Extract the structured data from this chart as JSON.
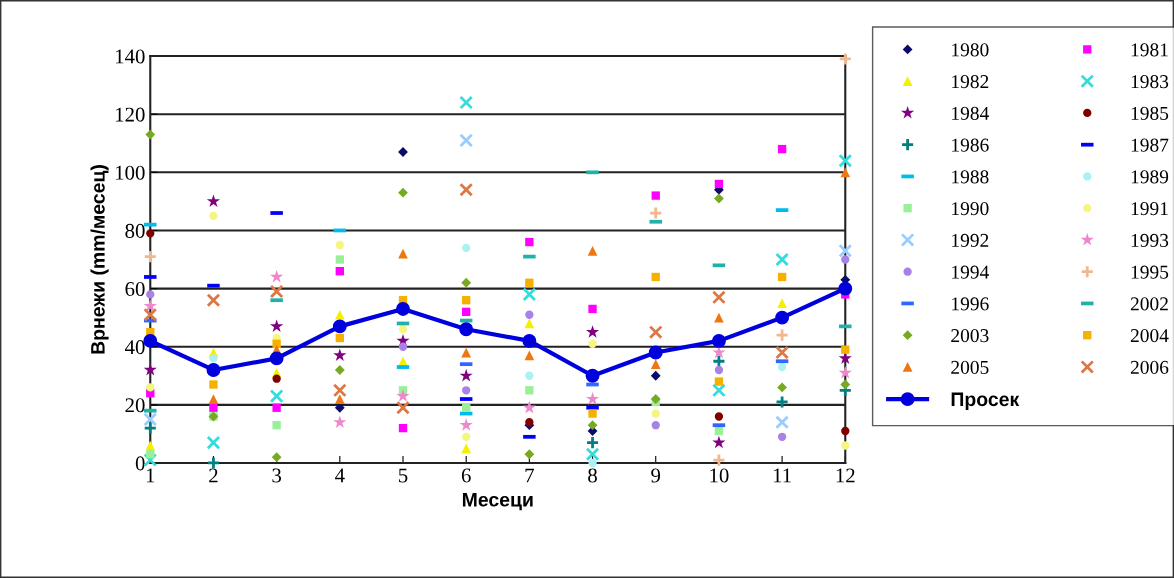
{
  "chart_data": {
    "type": "scatter",
    "xlabel": "Месеци",
    "ylabel": "Врнежи (mm/месец)",
    "x": [
      1,
      2,
      3,
      4,
      5,
      6,
      7,
      8,
      9,
      10,
      11,
      12
    ],
    "xlim": [
      1,
      12
    ],
    "xticks": [
      1,
      2,
      3,
      4,
      5,
      6,
      7,
      8,
      9,
      10,
      11,
      12
    ],
    "ylim": [
      0,
      140
    ],
    "yticks": [
      0,
      20,
      40,
      60,
      80,
      100,
      120,
      140
    ],
    "grid": "y",
    "legend": "right",
    "series": [
      {
        "name": "1980",
        "color": "#0b0b6b",
        "marker": "diamond",
        "values": [
          null,
          null,
          null,
          19,
          107,
          null,
          13,
          11,
          30,
          94,
          null,
          63
        ]
      },
      {
        "name": "1981",
        "color": "#ff00ff",
        "marker": "square",
        "values": [
          24,
          19,
          19,
          66,
          12,
          52,
          76,
          53,
          92,
          96,
          108,
          58
        ]
      },
      {
        "name": "1982",
        "color": "#f5f000",
        "marker": "triangle",
        "values": [
          6,
          38,
          31,
          51,
          35,
          5,
          48,
          null,
          null,
          null,
          55,
          null
        ]
      },
      {
        "name": "1983",
        "color": "#33dddd",
        "marker": "cross",
        "values": [
          1,
          7,
          23,
          null,
          null,
          124,
          58,
          3,
          null,
          25,
          70,
          104
        ]
      },
      {
        "name": "1984",
        "color": "#800080",
        "marker": "star",
        "values": [
          32,
          90,
          47,
          37,
          42,
          30,
          null,
          45,
          null,
          7,
          null,
          36
        ]
      },
      {
        "name": "1985",
        "color": "#800000",
        "marker": "circle",
        "values": [
          79,
          null,
          29,
          null,
          null,
          null,
          14,
          null,
          null,
          16,
          null,
          11
        ]
      },
      {
        "name": "1986",
        "color": "#008080",
        "marker": "plus",
        "values": [
          12,
          0,
          null,
          null,
          null,
          null,
          null,
          7,
          null,
          35,
          21,
          25
        ]
      },
      {
        "name": "1987",
        "color": "#0000ff",
        "values": [
          64,
          61,
          86,
          null,
          null,
          22,
          9,
          19,
          null,
          null,
          null,
          null
        ]
      },
      {
        "name": "1988",
        "color": "#00bbee",
        "values": [
          82,
          null,
          null,
          80,
          33,
          17,
          null,
          null,
          null,
          null,
          87,
          null
        ]
      },
      {
        "name": "1989",
        "color": "#aaf2f2",
        "marker": "circle",
        "values": [
          null,
          36,
          null,
          null,
          null,
          74,
          30,
          0,
          null,
          null,
          33,
          null
        ]
      },
      {
        "name": "1990",
        "color": "#99f099",
        "marker": "square",
        "values": [
          3,
          16,
          13,
          70,
          25,
          19,
          25,
          null,
          21,
          11,
          null,
          null
        ]
      },
      {
        "name": "1991",
        "color": "#f5f580",
        "marker": "circle",
        "values": [
          26,
          85,
          43,
          75,
          46,
          9,
          null,
          41,
          17,
          null,
          null,
          6
        ]
      },
      {
        "name": "1992",
        "color": "#99ccff",
        "marker": "cross",
        "values": [
          15,
          null,
          null,
          null,
          null,
          111,
          null,
          null,
          null,
          null,
          14,
          73
        ]
      },
      {
        "name": "1993",
        "color": "#ee88cc",
        "marker": "star",
        "values": [
          54,
          null,
          64,
          14,
          23,
          13,
          19,
          22,
          null,
          38,
          null,
          31
        ]
      },
      {
        "name": "1994",
        "color": "#a982e6",
        "marker": "circle",
        "values": [
          58,
          null,
          null,
          null,
          40,
          25,
          51,
          null,
          13,
          32,
          9,
          70
        ]
      },
      {
        "name": "1995",
        "color": "#f0b890",
        "marker": "plus",
        "values": [
          71,
          null,
          null,
          null,
          null,
          null,
          null,
          null,
          86,
          1,
          44,
          139
        ]
      },
      {
        "name": "1996",
        "color": "#3366ff",
        "values": [
          49,
          null,
          null,
          null,
          null,
          34,
          null,
          27,
          null,
          13,
          35,
          null
        ]
      },
      {
        "name": "2002",
        "color": "#20b2aa",
        "values": [
          18,
          null,
          56,
          null,
          48,
          49,
          71,
          100,
          83,
          68,
          null,
          47
        ]
      },
      {
        "name": "2003",
        "color": "#77aa22",
        "marker": "diamond",
        "values": [
          113,
          16,
          2,
          32,
          93,
          62,
          3,
          13,
          22,
          91,
          26,
          27
        ]
      },
      {
        "name": "2004",
        "color": "#f5b000",
        "marker": "square",
        "values": [
          45,
          27,
          41,
          43,
          56,
          56,
          62,
          17,
          64,
          28,
          64,
          39
        ]
      },
      {
        "name": "2005",
        "color": "#ee7711",
        "marker": "triangle",
        "values": [
          null,
          22,
          39,
          22,
          72,
          38,
          37,
          73,
          34,
          50,
          null,
          100
        ]
      },
      {
        "name": "2006",
        "color": "#dd7744",
        "marker": "cross",
        "values": [
          51,
          56,
          59,
          25,
          19,
          94,
          null,
          null,
          45,
          57,
          38,
          null
        ]
      },
      {
        "name": "Просек",
        "type": "line",
        "color": "#0000dd",
        "marker": "circle",
        "line_style": "solid",
        "values": [
          42,
          32,
          36,
          47,
          53,
          46,
          42,
          30,
          38,
          42,
          50,
          60
        ]
      }
    ]
  }
}
